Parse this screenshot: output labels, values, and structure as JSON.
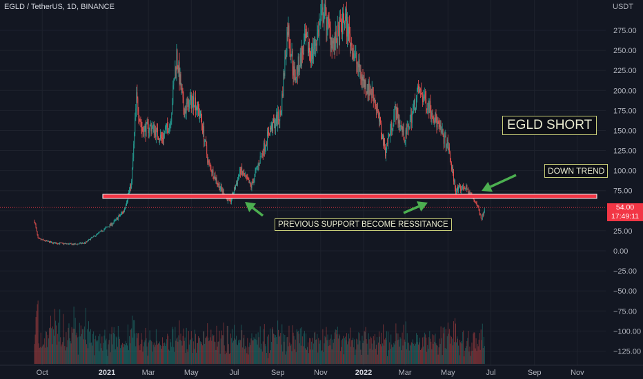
{
  "header": {
    "title": "EGLD / TetherUS, 1D, BINANCE",
    "unit": "USDT"
  },
  "price_tag": {
    "price": "54.00",
    "countdown": "17:49:11"
  },
  "annotations": {
    "short": "EGLD SHORT",
    "trend": "DOWN TREND",
    "support": "PREVIOUS SUPPORT BECOME RESSITANCE"
  },
  "colors": {
    "background": "#131722",
    "up": "#26a69a",
    "down": "#ef5350",
    "resistance_line": "#f23645",
    "arrow": "#4caf50",
    "note_border": "#c9cf7a"
  },
  "chart_data": {
    "type": "candlestick",
    "title": "EGLD / TetherUS, 1D, BINANCE",
    "y_axis": {
      "ticks": [
        "275.00",
        "250.00",
        "225.00",
        "200.00",
        "175.00",
        "150.00",
        "125.00",
        "100.00",
        "75.00",
        "50.00",
        "25.00",
        "0.00",
        "−25.00",
        "−50.00",
        "−75.00",
        "−100.00",
        "−125.00"
      ],
      "tick_values": [
        275,
        250,
        225,
        200,
        175,
        150,
        125,
        100,
        75,
        50,
        25,
        0,
        -25,
        -50,
        -75,
        -100,
        -125
      ],
      "range": [
        -140,
        310
      ]
    },
    "x_axis": {
      "ticks": [
        "Oct",
        "2021",
        "Mar",
        "May",
        "Jul",
        "Sep",
        "Nov",
        "2022",
        "Mar",
        "May",
        "Jul",
        "Sep",
        "Nov"
      ],
      "bold_ticks": [
        "2021",
        "2022"
      ]
    },
    "price_path": [
      [
        "2020-09-20",
        37
      ],
      [
        "2020-09-25",
        15
      ],
      [
        "2020-10-15",
        10
      ],
      [
        "2020-11-15",
        8
      ],
      [
        "2020-12-01",
        10
      ],
      [
        "2020-12-20",
        22
      ],
      [
        "2021-01-10",
        35
      ],
      [
        "2021-01-25",
        50
      ],
      [
        "2021-02-05",
        85
      ],
      [
        "2021-02-12",
        190
      ],
      [
        "2021-02-20",
        150
      ],
      [
        "2021-03-05",
        155
      ],
      [
        "2021-03-20",
        140
      ],
      [
        "2021-04-01",
        160
      ],
      [
        "2021-04-10",
        245
      ],
      [
        "2021-04-20",
        175
      ],
      [
        "2021-05-05",
        190
      ],
      [
        "2021-05-15",
        165
      ],
      [
        "2021-05-25",
        110
      ],
      [
        "2021-06-10",
        80
      ],
      [
        "2021-06-25",
        60
      ],
      [
        "2021-07-10",
        100
      ],
      [
        "2021-07-25",
        80
      ],
      [
        "2021-08-05",
        110
      ],
      [
        "2021-08-20",
        150
      ],
      [
        "2021-09-05",
        170
      ],
      [
        "2021-09-15",
        280
      ],
      [
        "2021-09-25",
        215
      ],
      [
        "2021-10-10",
        260
      ],
      [
        "2021-10-20",
        245
      ],
      [
        "2021-11-05",
        300
      ],
      [
        "2021-11-20",
        255
      ],
      [
        "2021-12-05",
        290
      ],
      [
        "2021-12-20",
        240
      ],
      [
        "2022-01-01",
        210
      ],
      [
        "2022-01-15",
        195
      ],
      [
        "2022-02-01",
        125
      ],
      [
        "2022-02-15",
        175
      ],
      [
        "2022-03-01",
        140
      ],
      [
        "2022-03-20",
        200
      ],
      [
        "2022-04-05",
        180
      ],
      [
        "2022-04-20",
        150
      ],
      [
        "2022-05-01",
        130
      ],
      [
        "2022-05-12",
        75
      ],
      [
        "2022-05-25",
        80
      ],
      [
        "2022-06-10",
        60
      ],
      [
        "2022-06-18",
        40
      ],
      [
        "2022-06-22",
        54
      ]
    ],
    "resistance_level": 68,
    "current_price": 54.0,
    "volume": "histogram at bottom of pane"
  }
}
